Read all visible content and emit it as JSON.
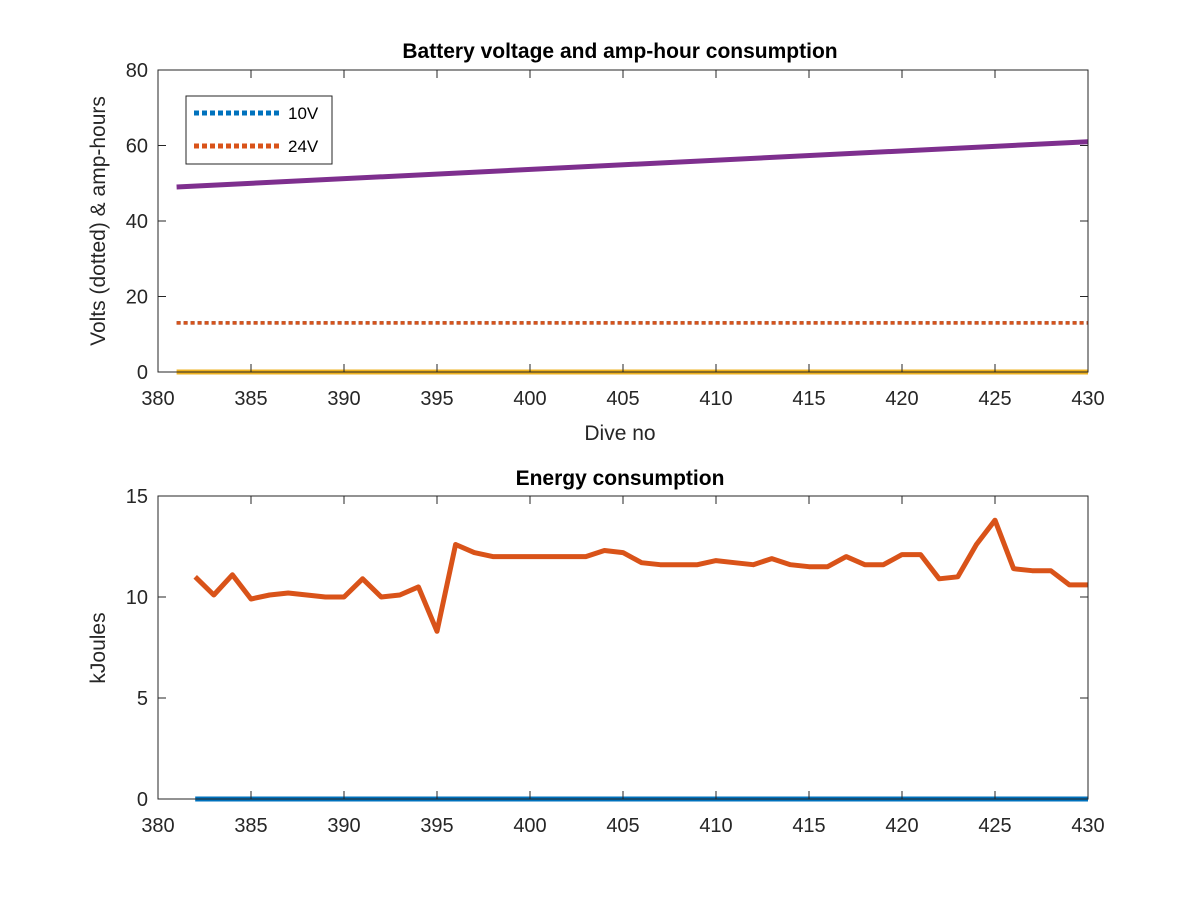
{
  "chart_data": [
    {
      "type": "line",
      "title": "Battery voltage and amp-hour consumption",
      "xlabel": "Dive no",
      "ylabel": "Volts (dotted) & amp-hours",
      "xlim": [
        380,
        430
      ],
      "ylim": [
        0,
        80
      ],
      "xticks": [
        "380",
        "385",
        "390",
        "395",
        "400",
        "405",
        "410",
        "415",
        "420",
        "425",
        "430"
      ],
      "yticks": [
        "0",
        "20",
        "40",
        "60",
        "80"
      ],
      "legend_position": "top-left",
      "series": [
        {
          "name": "10V",
          "style": "dotted",
          "color": "#0072BD",
          "x": [
            381,
            430
          ],
          "values": [
            13,
            13
          ]
        },
        {
          "name": "24V",
          "style": "dotted",
          "color": "#D95319",
          "x": [
            381,
            430
          ],
          "values": [
            13,
            13
          ]
        },
        {
          "style": "solid",
          "color": "#7E2F8E",
          "x": [
            381,
            430
          ],
          "values": [
            49,
            61
          ]
        },
        {
          "style": "solid",
          "color": "#EDB120",
          "x": [
            381,
            430
          ],
          "values": [
            0,
            0
          ]
        }
      ]
    },
    {
      "type": "line",
      "title": "Energy consumption",
      "xlabel": "",
      "ylabel": "kJoules",
      "xlim": [
        380,
        430
      ],
      "ylim": [
        0,
        15
      ],
      "xticks": [
        "380",
        "385",
        "390",
        "395",
        "400",
        "405",
        "410",
        "415",
        "420",
        "425",
        "430"
      ],
      "yticks": [
        "0",
        "5",
        "10",
        "15"
      ],
      "series": [
        {
          "style": "solid",
          "color": "#D95319",
          "x": [
            382,
            383,
            384,
            385,
            386,
            387,
            388,
            389,
            390,
            391,
            392,
            393,
            394,
            395,
            396,
            397,
            398,
            399,
            400,
            401,
            402,
            403,
            404,
            405,
            406,
            407,
            408,
            409,
            410,
            411,
            412,
            413,
            414,
            415,
            416,
            417,
            418,
            419,
            420,
            421,
            422,
            423,
            424,
            425,
            426,
            427,
            428,
            429,
            430
          ],
          "values": [
            11.0,
            10.1,
            11.1,
            9.9,
            10.1,
            10.2,
            10.1,
            10.0,
            10.0,
            10.9,
            10.0,
            10.1,
            10.5,
            8.3,
            12.6,
            12.2,
            12.0,
            12.0,
            12.0,
            12.0,
            12.0,
            12.0,
            12.3,
            12.2,
            11.7,
            11.6,
            11.6,
            11.6,
            11.8,
            11.7,
            11.6,
            11.9,
            11.6,
            11.5,
            11.5,
            12.0,
            11.6,
            11.6,
            12.1,
            12.1,
            10.9,
            11.0,
            12.6,
            13.8,
            11.4,
            11.3,
            11.3,
            10.6,
            10.6
          ]
        },
        {
          "style": "solid",
          "color": "#0072BD",
          "x": [
            382,
            430
          ],
          "values": [
            0,
            0
          ]
        }
      ]
    }
  ]
}
